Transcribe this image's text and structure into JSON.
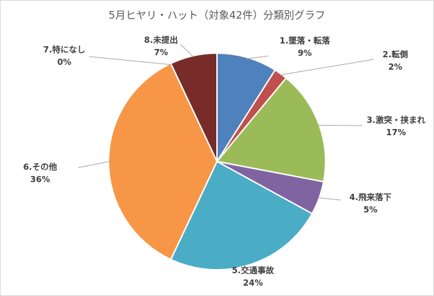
{
  "chart_data": {
    "type": "pie",
    "title": "5月ヒヤリ・ハット（対象42件）分類別グラフ",
    "slices": [
      {
        "name": "1.墜落・転落",
        "value": 9,
        "label": "9%",
        "color": "#4f81bd"
      },
      {
        "name": "2.転倒",
        "value": 2,
        "label": "2%",
        "color": "#c0504d"
      },
      {
        "name": "3.激突・挟まれ",
        "value": 17,
        "label": "17%",
        "color": "#9bbb59"
      },
      {
        "name": "4.飛来落下",
        "value": 5,
        "label": "5%",
        "color": "#8064a2"
      },
      {
        "name": "5.交通事故",
        "value": 24,
        "label": "24%",
        "color": "#4bacc6"
      },
      {
        "name": "6.その他",
        "value": 36,
        "label": "36%",
        "color": "#f79646"
      },
      {
        "name": "7.特になし",
        "value": 0,
        "label": "0%",
        "color": "#2c4d75"
      },
      {
        "name": "8.未提出",
        "value": 7,
        "label": "7%",
        "color": "#772c2a"
      }
    ]
  }
}
